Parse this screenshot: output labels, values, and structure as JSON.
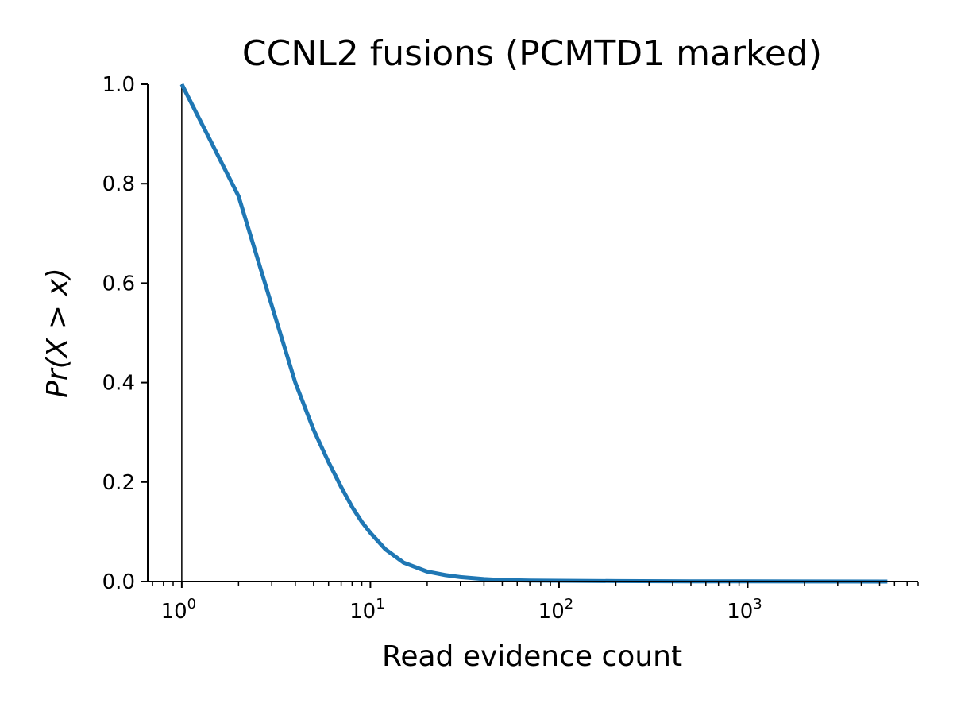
{
  "chart_data": {
    "type": "line",
    "title": "CCNL2 fusions (PCMTD1 marked)",
    "xlabel": "Read evidence count",
    "ylabel": "Pr(X > x)",
    "xscale": "log",
    "xlim": [
      0.66,
      8000
    ],
    "ylim": [
      0,
      1
    ],
    "grid": false,
    "legend": "none",
    "x_tick_labels": [
      {
        "base": "10",
        "exp": "0",
        "value": 1
      },
      {
        "base": "10",
        "exp": "1",
        "value": 10
      },
      {
        "base": "10",
        "exp": "2",
        "value": 100
      },
      {
        "base": "10",
        "exp": "3",
        "value": 1000
      }
    ],
    "y_tick_labels": [
      "0.0",
      "0.2",
      "0.4",
      "0.6",
      "0.8",
      "1.0"
    ],
    "y_tick_values": [
      0,
      0.2,
      0.4,
      0.6,
      0.8,
      1.0
    ],
    "marker_line_x": 1,
    "series_color": "#1f77b4",
    "marker_color": "#000000",
    "series": [
      {
        "x": [
          1,
          2,
          3,
          4,
          5,
          6,
          7,
          8,
          9,
          10,
          12,
          15,
          20,
          25,
          30,
          40,
          50,
          70,
          100,
          200,
          500,
          1000,
          2000,
          5500
        ],
        "y": [
          1.0,
          0.775,
          0.555,
          0.4,
          0.305,
          0.24,
          0.19,
          0.15,
          0.12,
          0.098,
          0.065,
          0.038,
          0.02,
          0.013,
          0.009,
          0.005,
          0.003,
          0.002,
          0.0015,
          0.001,
          0.0005,
          0.0003,
          0.0002,
          0.0001
        ]
      }
    ]
  }
}
